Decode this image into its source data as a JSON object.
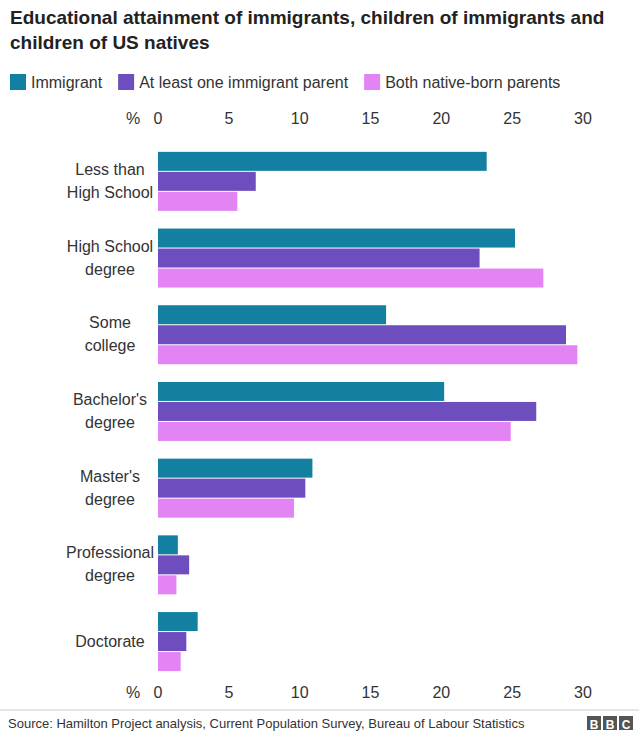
{
  "chart_data": {
    "type": "bar",
    "orientation": "horizontal",
    "title": "Educational attainment of immigrants, children of immigrants and children of US natives",
    "xlabel": "%",
    "source": "Source: Hamilton Project analysis, Current Population Survey, Bureau of Labour Statistics",
    "credit": "BBC",
    "categories": [
      "Less than\nHigh School",
      "High School\ndegree",
      "Some\ncollege",
      "Bachelor's\ndegree",
      "Master's\ndegree",
      "Professional\ndegree",
      "Doctorate"
    ],
    "series": [
      {
        "name": "Immigrant",
        "color": "#1380a1",
        "values": [
          23.2,
          25.2,
          16.1,
          20.2,
          10.9,
          1.4,
          2.8
        ]
      },
      {
        "name": "At least one immigrant parent",
        "color": "#6e4dbe",
        "values": [
          6.9,
          22.7,
          28.8,
          26.7,
          10.4,
          2.2,
          2.0
        ]
      },
      {
        "name": "Both native-born parents",
        "color": "#e384f4",
        "values": [
          5.6,
          27.2,
          29.6,
          24.9,
          9.6,
          1.3,
          1.6
        ]
      }
    ],
    "xlim": [
      0,
      30
    ],
    "xticks": [
      0,
      5,
      10,
      15,
      20,
      25,
      30
    ],
    "grid": false,
    "legend": "top",
    "data_labels": false
  }
}
